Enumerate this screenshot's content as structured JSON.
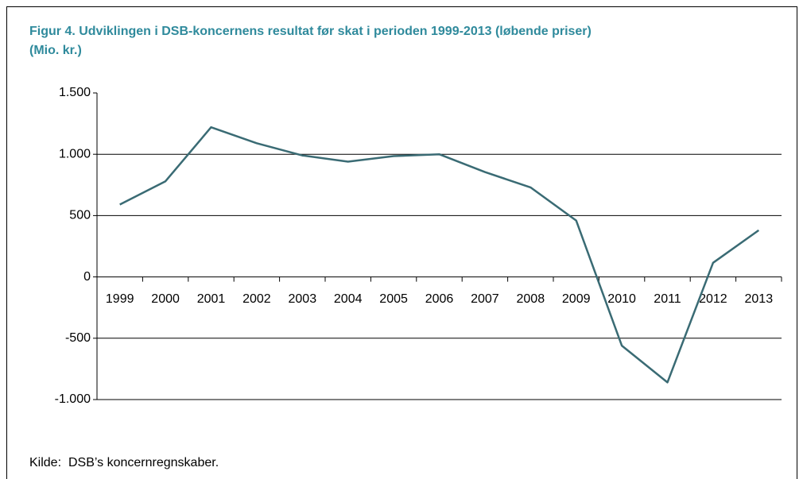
{
  "chart_data": {
    "type": "line",
    "title_lines": [
      "Figur 4. Udviklingen i DSB-koncernens resultat før skat i perioden 1999-2013 (løbende priser)",
      "(Mio. kr.)"
    ],
    "categories": [
      "1999",
      "2000",
      "2001",
      "2002",
      "2003",
      "2004",
      "2005",
      "2006",
      "2007",
      "2008",
      "2009",
      "2010",
      "2011",
      "2012",
      "2013"
    ],
    "series": [
      {
        "name": "Resultat før skat",
        "color": "#3a6b74",
        "values": [
          590,
          780,
          1220,
          1090,
          990,
          940,
          985,
          1000,
          855,
          730,
          460,
          -560,
          -860,
          115,
          380
        ]
      }
    ],
    "ylim": [
      -1000,
      1500
    ],
    "yticks": [
      {
        "value": -1000,
        "label": "-1.000"
      },
      -500,
      0,
      500,
      {
        "value": 1000,
        "label": "1.000"
      },
      {
        "value": 1500,
        "label": "1.500"
      }
    ],
    "grid": true,
    "source_label": "Kilde:",
    "source": "DSB’s koncernregnskaber."
  }
}
